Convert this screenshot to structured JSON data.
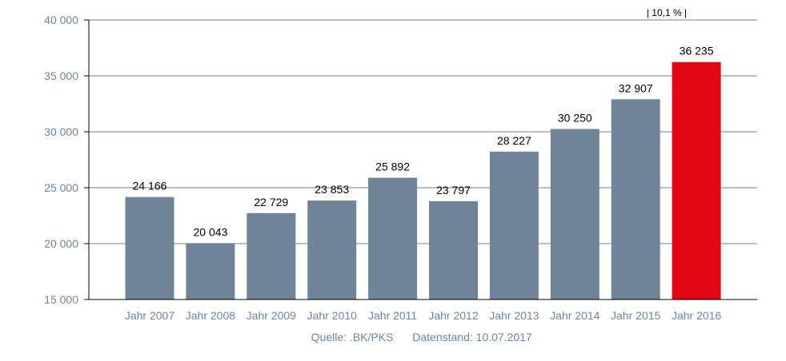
{
  "chart_data": {
    "type": "bar",
    "categories": [
      "Jahr 2007",
      "Jahr 2008",
      "Jahr 2009",
      "Jahr 2010",
      "Jahr 2011",
      "Jahr 2012",
      "Jahr 2013",
      "Jahr 2014",
      "Jahr 2015",
      "Jahr 2016"
    ],
    "values": [
      24166,
      20043,
      22729,
      23853,
      25892,
      23797,
      28227,
      30250,
      32907,
      36235
    ],
    "value_labels": [
      "24 166",
      "20 043",
      "22 729",
      "23 853",
      "25 892",
      "23 797",
      "28 227",
      "30 250",
      "32 907",
      "36 235"
    ],
    "ylim": [
      15000,
      40000
    ],
    "yticks": [
      15000,
      20000,
      25000,
      30000,
      35000,
      40000
    ],
    "ytick_labels": [
      "15 000",
      "20 000",
      "25 000",
      "30 000",
      "35 000",
      "40 000"
    ],
    "grid": true,
    "highlight_index": 9,
    "annotation": "| 10,1 % |",
    "colors": {
      "bar": "#708499",
      "highlight": "#e30613",
      "grid": "#6f8296",
      "axis": "#000000",
      "text": "#6f84a0"
    }
  },
  "footer": {
    "source": "Quelle: .BK/PKS",
    "date": "Datenstand: 10.07.2017"
  }
}
